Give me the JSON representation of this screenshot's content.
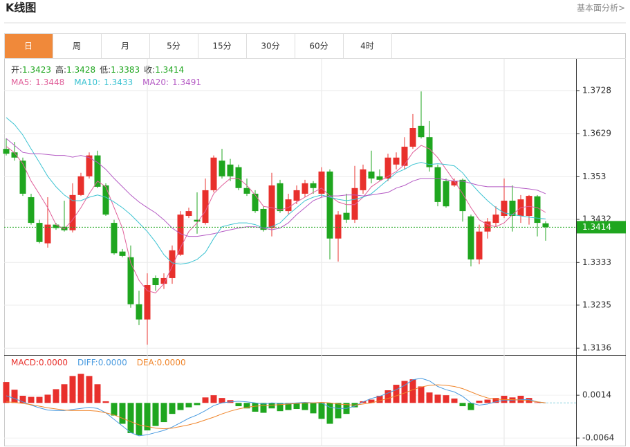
{
  "header": {
    "title": "K线图",
    "link": "基本面分析>"
  },
  "tabs": [
    "日",
    "周",
    "月",
    "5分",
    "15分",
    "30分",
    "60分",
    "4时"
  ],
  "active_tab": 0,
  "chart_data": [
    {
      "type": "candlestick",
      "categories": [
        null,
        null,
        null,
        null,
        null,
        null,
        null,
        null,
        null,
        null,
        null,
        null,
        null,
        null,
        null,
        null,
        null,
        null,
        null,
        null,
        null,
        null,
        null,
        null,
        null,
        null,
        null,
        null,
        null,
        null,
        null,
        null,
        null,
        null,
        null,
        null,
        null,
        null,
        null,
        null,
        null,
        null,
        null,
        null,
        null,
        null,
        null,
        null,
        null,
        null,
        null,
        null,
        null,
        null,
        null,
        null,
        null,
        null,
        null,
        null,
        null,
        null,
        null,
        null,
        null,
        null
      ],
      "ohlc_names": [
        "开:",
        "高:",
        "低:",
        "收:"
      ],
      "open": [
        1.3594,
        1.3586,
        1.3567,
        1.3483,
        1.3424,
        1.3377,
        1.342,
        1.3415,
        1.3407,
        1.3488,
        1.3531,
        1.3579,
        1.351,
        1.3424,
        1.3358,
        1.3345,
        1.3237,
        1.3202,
        1.3297,
        1.3284,
        1.3297,
        1.3351,
        1.344,
        1.3431,
        1.3424,
        1.3499,
        1.3567,
        1.3558,
        1.3552,
        1.3504,
        1.3491,
        1.3456,
        1.3412,
        1.3515,
        1.3451,
        1.3475,
        1.3491,
        1.3515,
        1.3491,
        1.3542,
        1.3388,
        1.3447,
        1.3431,
        1.3499,
        1.3542,
        1.3531,
        1.3526,
        1.3558,
        1.3555,
        1.3599,
        1.3647,
        1.3621,
        1.3552,
        1.352,
        1.351,
        1.3523,
        1.3439,
        1.334,
        1.3404,
        1.3424,
        1.344,
        1.3475,
        1.344,
        1.344,
        1.3485,
        1.3423
      ],
      "high": [
        1.3618,
        1.361,
        1.3574,
        1.3491,
        1.3431,
        1.3483,
        1.3424,
        1.3475,
        1.3515,
        1.3539,
        1.3586,
        1.359,
        1.3515,
        1.3431,
        1.3364,
        1.3372,
        1.3268,
        1.3308,
        1.3303,
        1.3308,
        1.3372,
        1.3451,
        1.3459,
        1.3494,
        1.3526,
        1.3579,
        1.3594,
        1.3571,
        1.3558,
        1.3526,
        1.3499,
        1.3462,
        1.3539,
        1.3523,
        1.3491,
        1.351,
        1.3523,
        1.352,
        1.3552,
        1.3547,
        1.3451,
        1.3491,
        1.3555,
        1.3558,
        1.359,
        1.3547,
        1.3583,
        1.3586,
        1.3621,
        1.3674,
        1.3726,
        1.3658,
        1.3558,
        1.3526,
        1.3526,
        1.3526,
        1.3443,
        1.342,
        1.3435,
        1.3462,
        1.3526,
        1.351,
        1.3488,
        1.3488,
        1.3488,
        1.3428
      ],
      "low": [
        1.3579,
        1.3567,
        1.3486,
        1.342,
        1.3377,
        1.3367,
        1.3408,
        1.3404,
        1.3402,
        1.3486,
        1.3526,
        1.3504,
        1.344,
        1.3351,
        1.3345,
        1.3229,
        1.3189,
        1.3144,
        1.3268,
        1.3272,
        1.3284,
        1.3348,
        1.3435,
        1.3399,
        1.342,
        1.3494,
        1.3526,
        1.352,
        1.3499,
        1.3486,
        1.3447,
        1.3404,
        1.3393,
        1.3447,
        1.3443,
        1.3467,
        1.3483,
        1.3491,
        1.3483,
        1.334,
        1.3335,
        1.3424,
        1.3424,
        1.3491,
        1.3515,
        1.352,
        1.352,
        1.3547,
        1.3547,
        1.3594,
        1.3618,
        1.3542,
        1.3462,
        1.3459,
        1.3507,
        1.3427,
        1.3324,
        1.3329,
        1.3388,
        1.3415,
        1.3435,
        1.3404,
        1.3424,
        1.342,
        1.3393,
        1.3383
      ],
      "close": [
        1.3583,
        1.3574,
        1.3491,
        1.3424,
        1.338,
        1.342,
        1.3412,
        1.3407,
        1.3488,
        1.3531,
        1.3579,
        1.3507,
        1.3443,
        1.3354,
        1.3348,
        1.3237,
        1.3202,
        1.3281,
        1.3281,
        1.3297,
        1.3361,
        1.3443,
        1.3451,
        1.3427,
        1.3499,
        1.3574,
        1.3531,
        1.3531,
        1.3504,
        1.3491,
        1.3451,
        1.3408,
        1.351,
        1.3451,
        1.3478,
        1.3499,
        1.3515,
        1.3504,
        1.3542,
        1.3388,
        1.3443,
        1.3431,
        1.3504,
        1.3547,
        1.3526,
        1.3523,
        1.3574,
        1.3574,
        1.3599,
        1.3642,
        1.3621,
        1.3552,
        1.3472,
        1.3462,
        1.352,
        1.3451,
        1.334,
        1.3404,
        1.3427,
        1.3443,
        1.3475,
        1.344,
        1.3478,
        1.3486,
        1.3424,
        1.3414
      ],
      "up_color": "#e8302c",
      "down_color": "#1fa61f",
      "legend_value_color": "#1fa61f",
      "series": [
        {
          "name": "MA5:",
          "color": "#e0609a",
          "values": [
            1.36,
            1.3585,
            1.356,
            1.352,
            1.349,
            1.3459,
            1.342,
            1.341,
            1.3431,
            1.3459,
            1.3491,
            1.352,
            1.3507,
            1.3459,
            1.3412,
            1.3332,
            1.3292,
            1.3268,
            1.3263,
            1.3284,
            1.3324,
            1.3367,
            1.3404,
            1.3424,
            1.3451,
            1.3491,
            1.351,
            1.3526,
            1.3526,
            1.351,
            1.3488,
            1.3462,
            1.3459,
            1.3454,
            1.3459,
            1.3472,
            1.3483,
            1.3494,
            1.3504,
            1.3486,
            1.3472,
            1.3466,
            1.3466,
            1.3483,
            1.3507,
            1.352,
            1.3531,
            1.3542,
            1.3558,
            1.3586,
            1.3602,
            1.3594,
            1.3574,
            1.3547,
            1.352,
            1.3491,
            1.3459,
            1.3431,
            1.342,
            1.3415,
            1.3424,
            1.3443,
            1.3459,
            1.3462,
            1.3459,
            1.3448
          ]
        },
        {
          "name": "MA10:",
          "color": "#3cc3d2",
          "values": [
            1.3666,
            1.365,
            1.3626,
            1.3594,
            1.3563,
            1.3531,
            1.3507,
            1.3488,
            1.3475,
            1.3475,
            1.3483,
            1.3488,
            1.3483,
            1.3472,
            1.3459,
            1.3443,
            1.3424,
            1.3404,
            1.338,
            1.3351,
            1.3332,
            1.3329,
            1.3332,
            1.334,
            1.3356,
            1.3388,
            1.3415,
            1.342,
            1.3424,
            1.3424,
            1.342,
            1.3412,
            1.3415,
            1.3424,
            1.3443,
            1.3459,
            1.3475,
            1.3483,
            1.3488,
            1.3483,
            1.3478,
            1.3475,
            1.3478,
            1.3483,
            1.3491,
            1.3507,
            1.3523,
            1.3539,
            1.3547,
            1.3558,
            1.3563,
            1.3558,
            1.356,
            1.3558,
            1.3555,
            1.3539,
            1.3515,
            1.3494,
            1.3475,
            1.3459,
            1.3447,
            1.3443,
            1.344,
            1.3437,
            1.3435,
            1.3433
          ]
        },
        {
          "name": "MA20:",
          "color": "#b45ac4",
          "values": [
            1.3618,
            1.3602,
            1.3586,
            1.3583,
            1.3583,
            1.3581,
            1.3579,
            1.3579,
            1.3575,
            1.3579,
            1.3574,
            1.3563,
            1.3547,
            1.3526,
            1.3507,
            1.3488,
            1.3472,
            1.3459,
            1.3447,
            1.3431,
            1.3412,
            1.3399,
            1.3393,
            1.3393,
            1.3396,
            1.3399,
            1.3404,
            1.3408,
            1.3412,
            1.3415,
            1.3415,
            1.3412,
            1.3408,
            1.3412,
            1.3424,
            1.3443,
            1.3459,
            1.3475,
            1.3483,
            1.3486,
            1.3486,
            1.3488,
            1.3488,
            1.3486,
            1.3488,
            1.3491,
            1.3494,
            1.3504,
            1.351,
            1.352,
            1.3526,
            1.3526,
            1.3526,
            1.3523,
            1.352,
            1.352,
            1.3515,
            1.351,
            1.3507,
            1.3507,
            1.3507,
            1.3507,
            1.3504,
            1.3502,
            1.3499,
            1.3491
          ]
        }
      ],
      "last_price": 1.3414,
      "ylim": [
        1.3122,
        1.3801
      ],
      "yticks": [
        1.3728,
        1.3629,
        1.353,
        1.3432,
        1.3333,
        1.3235,
        1.3136
      ],
      "grid": true
    },
    {
      "type": "macd",
      "bars": {
        "name": "MACD:",
        "legend_value": "0.0000",
        "up_color": "#e8302c",
        "down_color": "#1fa61f",
        "values": [
          0.0038,
          0.0024,
          0.0013,
          0.0011,
          0.0011,
          0.0015,
          0.0025,
          0.0034,
          0.0049,
          0.0053,
          0.0049,
          0.0034,
          0.0003,
          -0.0023,
          -0.0038,
          -0.0055,
          -0.0059,
          -0.005,
          -0.0042,
          -0.0035,
          -0.002,
          -0.0013,
          -0.0008,
          -0.0004,
          0.001,
          0.0014,
          0.0009,
          0.0005,
          -0.0006,
          -0.001,
          -0.0016,
          -0.0018,
          -0.001,
          -0.0015,
          -0.0013,
          -0.0011,
          -0.0013,
          -0.0019,
          -0.0029,
          -0.0038,
          -0.0028,
          -0.002,
          -0.0008,
          0.0003,
          0.0006,
          0.0013,
          0.0023,
          0.0033,
          0.004,
          0.0043,
          0.003,
          0.0019,
          0.0015,
          0.0014,
          0.0008,
          -0.0006,
          -0.0013,
          0.0004,
          0.0006,
          0.0009,
          0.0013,
          0.001,
          0.0013,
          0.0009,
          0.0001,
          0
        ]
      },
      "series": [
        {
          "name": "DIFF:",
          "legend_value": "0.0000",
          "color": "#4a9be0",
          "values": [
            0.0013,
            0.0008,
            0.0002,
            -0.0004,
            -0.0009,
            -0.0013,
            -0.0014,
            -0.0014,
            -0.0012,
            -0.001,
            -0.0008,
            -0.001,
            -0.0018,
            -0.003,
            -0.0042,
            -0.0054,
            -0.006,
            -0.0058,
            -0.0054,
            -0.005,
            -0.0044,
            -0.0036,
            -0.0028,
            -0.0022,
            -0.0014,
            -0.0005,
            0,
            0.0002,
            0.0003,
            0.0002,
            0,
            -0.0002,
            0,
            -0.0001,
            -0.0001,
            0,
            0.0001,
            0,
            0,
            -0.0008,
            -0.001,
            -0.001,
            -0.0006,
            0.0002,
            0.0008,
            0.0012,
            0.0018,
            0.0024,
            0.0032,
            0.0042,
            0.0045,
            0.004,
            0.003,
            0.0024,
            0.002,
            0.0012,
            0,
            -0.0004,
            -0.0002,
            0.0002,
            0.0005,
            0.0005,
            0.0006,
            0.0006,
            0.0002,
            0
          ]
        },
        {
          "name": "DEA:",
          "legend_value": "0.0000",
          "color": "#f0852a",
          "values": [
            0.0002,
            0.0001,
            -0.0001,
            -0.0003,
            -0.0006,
            -0.0009,
            -0.0011,
            -0.0013,
            -0.0014,
            -0.0014,
            -0.0014,
            -0.0015,
            -0.0018,
            -0.0022,
            -0.0028,
            -0.0034,
            -0.004,
            -0.0043,
            -0.0046,
            -0.0047,
            -0.0046,
            -0.0043,
            -0.004,
            -0.0036,
            -0.0031,
            -0.0026,
            -0.002,
            -0.0015,
            -0.0011,
            -0.0008,
            -0.0006,
            -0.0005,
            -0.0004,
            -0.0003,
            -0.0002,
            -0.0001,
            0,
            0,
            0.0001,
            0,
            -0.0002,
            -0.0003,
            -0.0004,
            -0.0002,
            0,
            0.0004,
            0.0008,
            0.0013,
            0.0018,
            0.0024,
            0.0029,
            0.0032,
            0.0033,
            0.0032,
            0.003,
            0.0026,
            0.002,
            0.0014,
            0.0009,
            0.0007,
            0.0006,
            0.0006,
            0.0005,
            0.0004,
            0.0002,
            0
          ]
        }
      ],
      "ylim": [
        -0.0079,
        0.0086
      ],
      "yticks": [
        0.0014,
        -0.0064
      ]
    }
  ]
}
